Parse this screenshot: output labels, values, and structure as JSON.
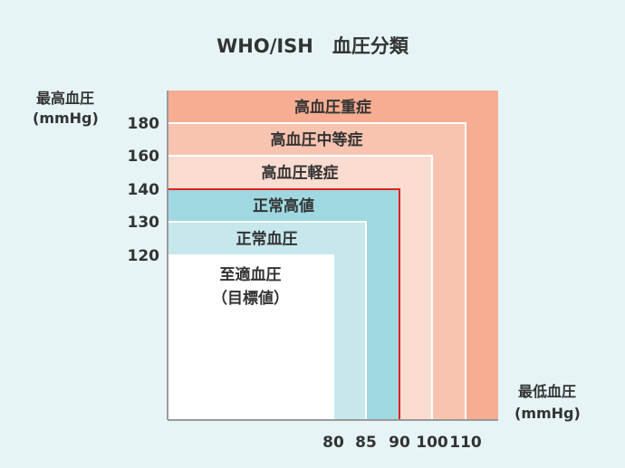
{
  "chart_data": {
    "type": "region",
    "title": "WHO/ISH　血圧分類",
    "ylabel": [
      "最高血圧",
      "(mmHg)"
    ],
    "xlabel": [
      "最低血圧",
      "(mmHg)"
    ],
    "y_ticks": [
      120,
      130,
      140,
      160,
      180
    ],
    "x_ticks": [
      80,
      85,
      90,
      100,
      110
    ],
    "zones": [
      {
        "name": "高血圧重症",
        "color": "#f6ad92",
        "systolic_max": null,
        "diastolic_max": null
      },
      {
        "name": "高血圧中等症",
        "color": "#f8c4b0",
        "systolic_max": 180,
        "diastolic_max": 110
      },
      {
        "name": "高血圧軽症",
        "color": "#fbdcd1",
        "systolic_max": 160,
        "diastolic_max": 100
      },
      {
        "name": "正常高値",
        "color": "#9fd8e0",
        "systolic_max": 140,
        "diastolic_max": 90
      },
      {
        "name": "正常血圧",
        "color": "#c6e8ec",
        "systolic_max": 130,
        "diastolic_max": 85
      },
      {
        "name": "至適血圧",
        "sublabel": "（目標値）",
        "color": "#ffffff",
        "systolic_max": 120,
        "diastolic_max": 80
      }
    ],
    "hypertension_threshold": {
      "systolic": 140,
      "diastolic": 90,
      "color": "#e02020"
    },
    "axis_color": "#9a9a9a"
  }
}
